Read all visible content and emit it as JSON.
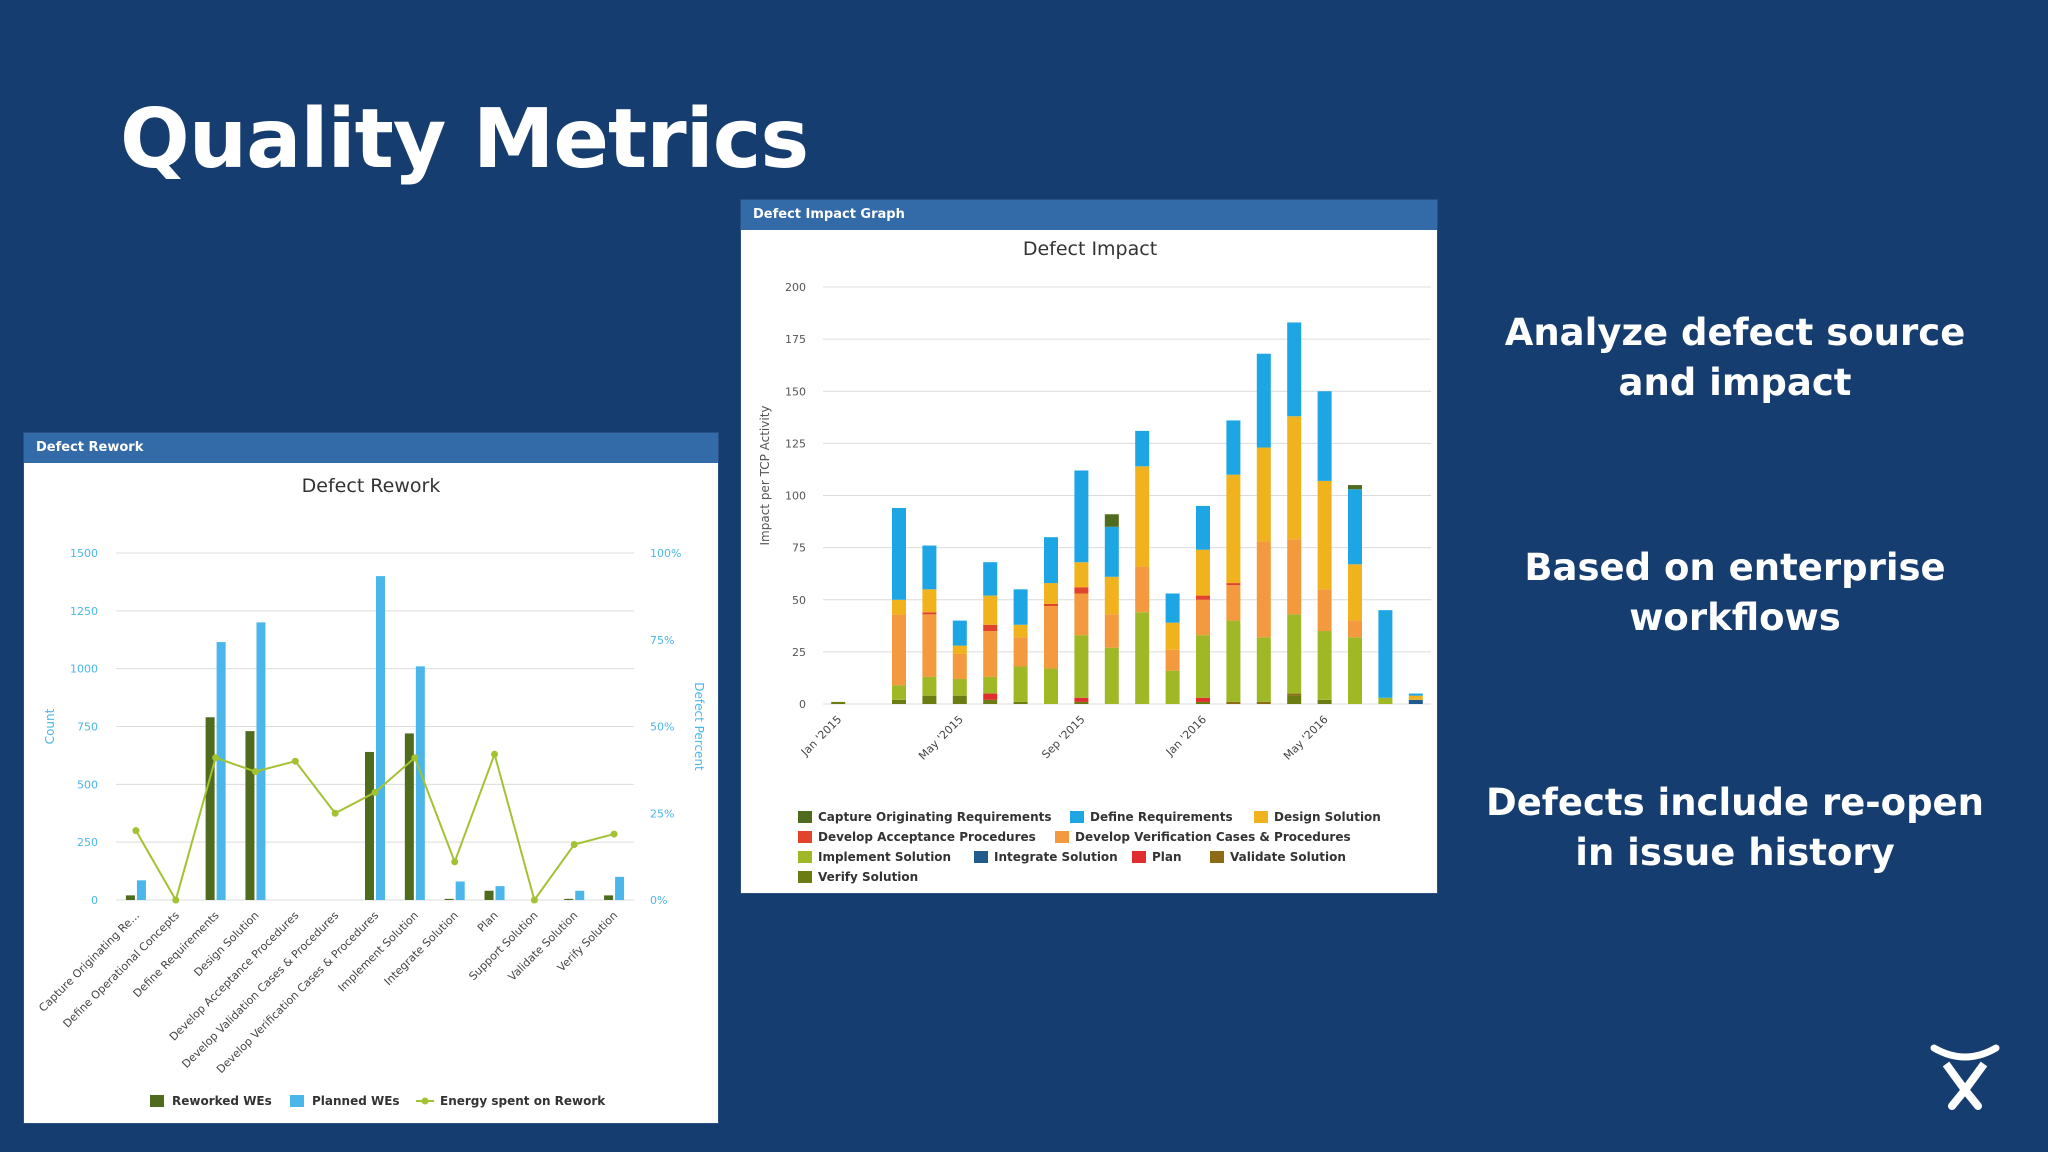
{
  "slide": {
    "title": "Quality Metrics",
    "bullets": [
      "Analyze defect source and impact",
      "Based on enterprise workflows",
      "Defects include re-open in issue history"
    ]
  },
  "colors": {
    "background": "#163d6f",
    "panel_header": "#336aa8",
    "reworked": "#4f6b1e",
    "planned": "#4bb6ea",
    "energy": "#a3c232"
  },
  "icons": {
    "logo": "atlassian-logo-icon"
  },
  "chart_data": [
    {
      "type": "bar",
      "panel_title": "Defect Rework",
      "title": "Defect Rework",
      "ylabel": "Count",
      "y2label": "Defect Percent",
      "ylim": [
        0,
        1500
      ],
      "y2lim": [
        0,
        100
      ],
      "yticks": [
        "0",
        "250",
        "500",
        "750",
        "1000",
        "1250",
        "1500"
      ],
      "y2ticks": [
        "0%",
        "25%",
        "50%",
        "75%",
        "100%"
      ],
      "grid": true,
      "legend_position": "bottom",
      "categories": [
        "Capture Originating Re...",
        "Define Operational Concepts",
        "Define Requirements",
        "Design Solution",
        "Develop Acceptance Procedures",
        "Develop Validation Cases & Procedures",
        "Develop Verification Cases & Procedures",
        "Implement Solution",
        "Integrate Solution",
        "Plan",
        "Support Solution",
        "Validate Solution",
        "Verify Solution"
      ],
      "series": [
        {
          "name": "Reworked WEs",
          "type": "bar",
          "values": [
            20,
            0,
            790,
            730,
            0,
            0,
            640,
            720,
            5,
            40,
            0,
            5,
            20
          ]
        },
        {
          "name": "Planned WEs",
          "type": "bar",
          "values": [
            85,
            0,
            1115,
            1200,
            0,
            0,
            1400,
            1010,
            80,
            60,
            0,
            40,
            100
          ]
        },
        {
          "name": "Energy spent on Rework",
          "type": "line",
          "axis": "right",
          "values": [
            20,
            0,
            41,
            37,
            40,
            25,
            31,
            41,
            11,
            42,
            0,
            16,
            19
          ]
        }
      ]
    },
    {
      "type": "bar",
      "stacked": true,
      "panel_title": "Defect Impact Graph",
      "title": "Defect Impact",
      "ylabel": "Impact per TCP Activity",
      "ylim": [
        0,
        200
      ],
      "yticks": [
        "0",
        "25",
        "50",
        "75",
        "100",
        "125",
        "150",
        "175",
        "200"
      ],
      "x_tick_labels": [
        {
          "label": "Jan '2015",
          "index": 0
        },
        {
          "label": "May '2015",
          "index": 4
        },
        {
          "label": "Sep '2015",
          "index": 8
        },
        {
          "label": "Jan '2016",
          "index": 12
        },
        {
          "label": "May '2016",
          "index": 16
        }
      ],
      "grid": true,
      "legend_position": "bottom",
      "periods": 20,
      "series": [
        {
          "name": "Capture Originating Requirements",
          "color": "#4f6b1e",
          "values": [
            0,
            0,
            0,
            0,
            0,
            0,
            0,
            0,
            0,
            6,
            0,
            0,
            0,
            0,
            0,
            0,
            0,
            2,
            0,
            0
          ]
        },
        {
          "name": "Define Requirements",
          "color": "#1ea5e3",
          "values": [
            0,
            0,
            44,
            21,
            12,
            16,
            17,
            22,
            44,
            24,
            17,
            14,
            21,
            26,
            45,
            45,
            43,
            36,
            42,
            1
          ]
        },
        {
          "name": "Design Solution",
          "color": "#f0b31d",
          "values": [
            0,
            0,
            7,
            11,
            4,
            14,
            6,
            10,
            12,
            18,
            48,
            13,
            22,
            52,
            45,
            59,
            52,
            27,
            0,
            2
          ]
        },
        {
          "name": "Develop Acceptance Procedures",
          "color": "#e1432c",
          "values": [
            0,
            0,
            0,
            1,
            0,
            3,
            0,
            1,
            3,
            0,
            0,
            0,
            2,
            1,
            0,
            0,
            0,
            0,
            0,
            0
          ]
        },
        {
          "name": "Develop Verification Cases & Procedures",
          "color": "#f49a3e",
          "values": [
            0,
            0,
            34,
            30,
            12,
            22,
            14,
            30,
            20,
            16,
            22,
            10,
            17,
            17,
            46,
            36,
            20,
            8,
            0,
            0
          ]
        },
        {
          "name": "Implement Solution",
          "color": "#a0b726",
          "values": [
            0,
            0,
            7,
            9,
            8,
            8,
            17,
            17,
            30,
            27,
            44,
            16,
            30,
            39,
            31,
            38,
            33,
            32,
            3,
            0
          ]
        },
        {
          "name": "Integrate Solution",
          "color": "#1f5b8c",
          "values": [
            0,
            0,
            0,
            0,
            0,
            0,
            0,
            0,
            0,
            0,
            0,
            0,
            0,
            0,
            0,
            0,
            0,
            0,
            0,
            2
          ]
        },
        {
          "name": "Plan",
          "color": "#e02e2e",
          "values": [
            0,
            0,
            0,
            0,
            0,
            3,
            0,
            0,
            2,
            0,
            0,
            0,
            2,
            0,
            0,
            0,
            0,
            0,
            0,
            0
          ]
        },
        {
          "name": "Validate Solution",
          "color": "#8c6a16",
          "values": [
            0,
            0,
            0,
            0,
            0,
            0,
            0,
            0,
            0,
            0,
            0,
            0,
            0,
            1,
            1,
            1,
            0,
            0,
            0,
            0
          ]
        },
        {
          "name": "Verify Solution",
          "color": "#6b7d12",
          "values": [
            1,
            0,
            2,
            4,
            4,
            2,
            1,
            0,
            1,
            0,
            0,
            0,
            1,
            0,
            0,
            4,
            2,
            0,
            0,
            0
          ]
        }
      ]
    }
  ]
}
